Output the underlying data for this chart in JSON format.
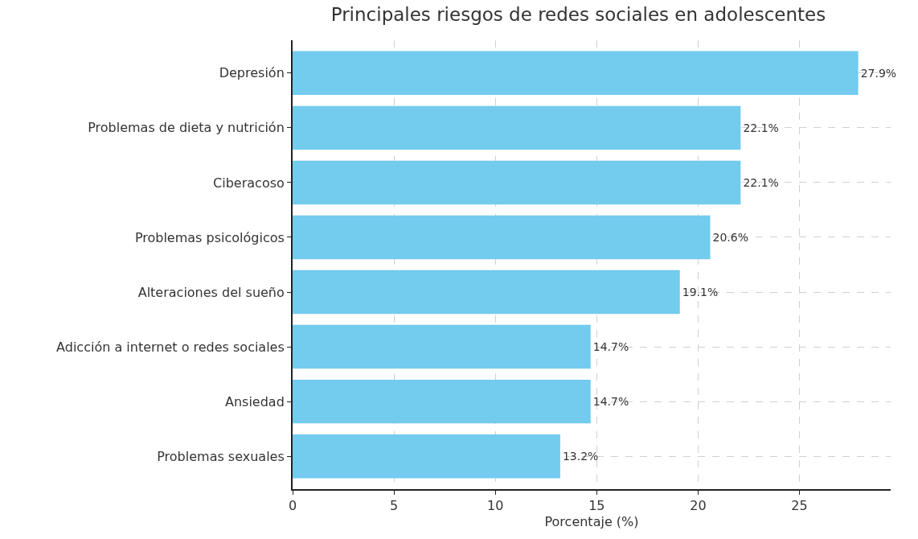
{
  "chart_data": {
    "type": "bar",
    "orientation": "horizontal",
    "title": "Principales riesgos de redes sociales en adolescentes",
    "xlabel": "Porcentaje (%)",
    "categories": [
      "Depresión",
      "Problemas de dieta y nutrición",
      "Ciberacoso",
      "Problemas psicológicos",
      "Alteraciones del sueño",
      "Adicción a internet o redes sociales",
      "Ansiedad",
      "Problemas sexuales"
    ],
    "values": [
      27.9,
      22.1,
      22.1,
      20.6,
      19.1,
      14.7,
      14.7,
      13.2
    ],
    "value_labels": [
      "27.9%",
      "22.1%",
      "22.1%",
      "20.6%",
      "19.1%",
      "14.7%",
      "14.7%",
      "13.2%"
    ],
    "color": "#73cbee",
    "xlim": [
      0,
      29.5
    ],
    "xticks": [
      0,
      5,
      10,
      15,
      20,
      25
    ],
    "grid": true
  }
}
